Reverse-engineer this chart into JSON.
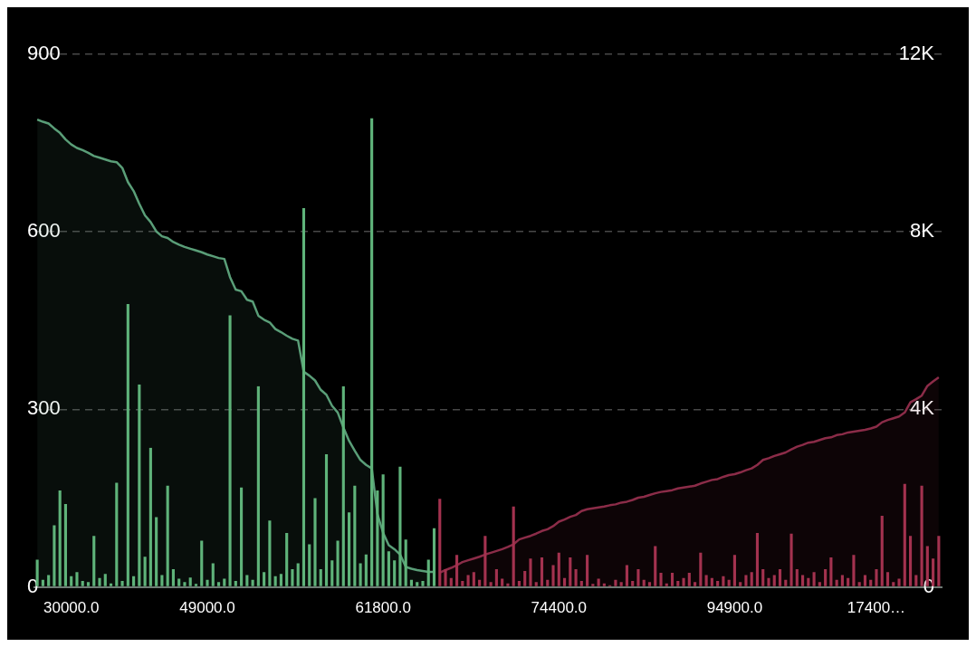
{
  "chart_data": {
    "type": "bar",
    "categories": [
      null,
      null,
      null,
      null,
      null,
      null,
      "30000.0",
      null,
      null,
      null,
      null,
      null,
      null,
      null,
      null,
      null,
      null,
      null,
      null,
      null,
      null,
      null,
      null,
      null,
      null,
      null,
      null,
      null,
      null,
      null,
      "49000.0",
      null,
      null,
      null,
      null,
      null,
      null,
      null,
      null,
      null,
      null,
      null,
      null,
      null,
      null,
      null,
      null,
      null,
      null,
      null,
      null,
      null,
      null,
      null,
      null,
      null,
      null,
      null,
      null,
      null,
      null,
      "61800.0",
      null,
      null,
      null,
      null,
      null,
      null,
      null,
      null,
      null,
      null,
      null,
      null,
      null,
      null,
      null,
      null,
      null,
      null,
      null,
      null,
      null,
      null,
      null,
      null,
      null,
      null,
      null,
      null,
      null,
      null,
      "74400.0",
      null,
      null,
      null,
      null,
      null,
      null,
      null,
      null,
      null,
      null,
      null,
      null,
      null,
      null,
      null,
      null,
      null,
      null,
      null,
      null,
      null,
      null,
      null,
      null,
      null,
      null,
      null,
      null,
      null,
      null,
      "94900.0",
      null,
      null,
      null,
      null,
      null,
      null,
      null,
      null,
      null,
      null,
      null,
      null,
      null,
      null,
      null,
      null,
      null,
      null,
      null,
      null,
      null,
      null,
      null,
      null,
      "17400…",
      null,
      null,
      null,
      null,
      null,
      null,
      null,
      null,
      null,
      null,
      null
    ],
    "series": [
      {
        "color": "#5fb37a",
        "values": [
          46,
          12,
          20,
          104,
          163,
          140,
          18,
          25,
          10,
          8,
          86,
          15,
          22,
          6,
          176,
          10,
          478,
          18,
          342,
          51,
          235,
          118,
          20,
          171,
          30,
          14,
          8,
          16,
          5,
          78,
          12,
          40,
          8,
          14,
          459,
          10,
          168,
          20,
          12,
          339,
          25,
          112,
          18,
          22,
          91,
          30,
          40,
          640,
          72,
          150,
          30,
          224,
          45,
          78,
          339,
          126,
          171,
          40,
          55,
          792,
          163,
          190,
          60,
          45,
          203,
          80,
          12,
          8,
          10,
          46,
          99,
          null,
          null,
          null,
          null,
          null,
          null,
          null,
          null,
          null,
          null,
          null,
          null,
          null,
          null,
          null,
          null,
          null,
          null,
          null,
          null,
          null,
          null,
          null,
          null,
          null,
          null,
          null,
          null,
          null,
          null,
          null,
          null,
          null,
          null,
          null,
          null,
          null,
          null,
          null,
          null,
          null,
          null,
          null,
          null,
          null,
          null,
          null,
          null,
          null,
          null,
          null,
          null,
          null,
          null,
          null,
          null,
          null,
          null,
          null,
          null,
          null,
          null,
          null,
          null,
          null,
          null,
          null,
          null,
          null,
          null,
          null,
          null,
          null,
          null,
          null,
          null,
          null,
          null,
          null,
          null,
          null,
          null,
          null,
          null,
          null,
          null,
          null,
          null,
          null
        ]
      },
      {
        "color": "#a3324f",
        "values": [
          null,
          null,
          null,
          null,
          null,
          null,
          null,
          null,
          null,
          null,
          null,
          null,
          null,
          null,
          null,
          null,
          null,
          null,
          null,
          null,
          null,
          null,
          null,
          null,
          null,
          null,
          null,
          null,
          null,
          null,
          null,
          null,
          null,
          null,
          null,
          null,
          null,
          null,
          null,
          null,
          null,
          null,
          null,
          null,
          null,
          null,
          null,
          null,
          null,
          null,
          null,
          null,
          null,
          null,
          null,
          null,
          null,
          null,
          null,
          null,
          null,
          null,
          null,
          null,
          null,
          null,
          null,
          null,
          null,
          null,
          null,
          149,
          30,
          15,
          54,
          10,
          20,
          25,
          12,
          86,
          8,
          30,
          14,
          6,
          136,
          10,
          27,
          48,
          8,
          50,
          12,
          37,
          58,
          15,
          50,
          30,
          10,
          54,
          5,
          14,
          6,
          3,
          12,
          8,
          37,
          10,
          30,
          12,
          8,
          69,
          24,
          6,
          24,
          10,
          15,
          24,
          8,
          58,
          20,
          15,
          10,
          18,
          12,
          54,
          8,
          20,
          25,
          91,
          30,
          15,
          20,
          30,
          12,
          90,
          30,
          20,
          15,
          25,
          8,
          30,
          50,
          12,
          20,
          15,
          54,
          8,
          20,
          12,
          30,
          120,
          25,
          8,
          14,
          174,
          86,
          20,
          171,
          69,
          48,
          86
        ]
      },
      {
        "type": "area",
        "axis": "y2",
        "color": "#5a9e78",
        "values": [
          10530,
          10480,
          10440,
          10330,
          10230,
          10080,
          9970,
          9890,
          9840,
          9780,
          9710,
          9670,
          9630,
          9590,
          9570,
          9440,
          9120,
          8920,
          8630,
          8370,
          8220,
          8010,
          7900,
          7860,
          7770,
          7710,
          7660,
          7620,
          7580,
          7540,
          7490,
          7450,
          7410,
          7390,
          6980,
          6700,
          6660,
          6470,
          6430,
          6110,
          6020,
          5960,
          5810,
          5740,
          5660,
          5590,
          5550,
          4850,
          4760,
          4650,
          4440,
          4330,
          4080,
          3930,
          3590,
          3290,
          3070,
          2860,
          2750,
          2670,
          1640,
          1220,
          940,
          850,
          730,
          450,
          410,
          380,
          360,
          340,
          340,
          null,
          null,
          null,
          null,
          null,
          null,
          null,
          null,
          null,
          null,
          null,
          null,
          null,
          null,
          null,
          null,
          null,
          null,
          null,
          null,
          null,
          null,
          null,
          null,
          null,
          null,
          null,
          null,
          null,
          null,
          null,
          null,
          null,
          null,
          null,
          null,
          null,
          null,
          null,
          null,
          null,
          null,
          null,
          null,
          null,
          null,
          null,
          null,
          null,
          null,
          null,
          null,
          null,
          null,
          null,
          null,
          null,
          null,
          null,
          null,
          null,
          null,
          null,
          null,
          null,
          null,
          null,
          null,
          null,
          null,
          null,
          null,
          null,
          null,
          null,
          null,
          null,
          null,
          null,
          null,
          null,
          null,
          null,
          null,
          null,
          null,
          null,
          null,
          null
        ]
      },
      {
        "type": "area",
        "axis": "y2",
        "color": "#8b2c48",
        "values": [
          null,
          null,
          null,
          null,
          null,
          null,
          null,
          null,
          null,
          null,
          null,
          null,
          null,
          null,
          null,
          null,
          null,
          null,
          null,
          null,
          null,
          null,
          null,
          null,
          null,
          null,
          null,
          null,
          null,
          null,
          null,
          null,
          null,
          null,
          null,
          null,
          null,
          null,
          null,
          null,
          null,
          null,
          null,
          null,
          null,
          null,
          null,
          null,
          null,
          null,
          null,
          null,
          null,
          null,
          null,
          null,
          null,
          null,
          null,
          null,
          null,
          null,
          null,
          null,
          null,
          null,
          null,
          null,
          null,
          null,
          null,
          320,
          380,
          430,
          490,
          560,
          600,
          640,
          680,
          730,
          770,
          810,
          850,
          900,
          960,
          1070,
          1110,
          1150,
          1200,
          1260,
          1300,
          1370,
          1470,
          1520,
          1580,
          1620,
          1710,
          1750,
          1770,
          1790,
          1810,
          1840,
          1860,
          1900,
          1920,
          1960,
          2010,
          2030,
          2070,
          2110,
          2140,
          2160,
          2180,
          2220,
          2240,
          2260,
          2280,
          2330,
          2370,
          2410,
          2430,
          2480,
          2520,
          2540,
          2580,
          2630,
          2670,
          2750,
          2860,
          2900,
          2950,
          2990,
          3030,
          3100,
          3160,
          3200,
          3250,
          3270,
          3310,
          3350,
          3370,
          3420,
          3440,
          3480,
          3500,
          3520,
          3540,
          3570,
          3610,
          3710,
          3760,
          3800,
          3840,
          3930,
          4160,
          4230,
          4310,
          4530,
          4630,
          4720
        ]
      }
    ],
    "ylim": [
      0,
      900
    ],
    "yticks": [
      0,
      300,
      600,
      900
    ],
    "y2lim": [
      0,
      12000
    ],
    "y2ticks": [
      {
        "value": 0,
        "label": "0"
      },
      {
        "value": 4000,
        "label": "4K"
      },
      {
        "value": 8000,
        "label": "8K"
      },
      {
        "value": 12000,
        "label": "12K"
      }
    ],
    "grid": "y",
    "legend": false,
    "marker": "none"
  }
}
